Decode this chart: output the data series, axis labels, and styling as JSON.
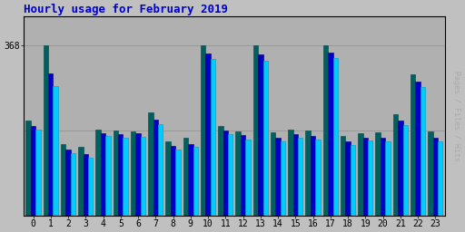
{
  "title": "Hourly usage for February 2019",
  "title_color": "#0000cc",
  "title_fontsize": 9,
  "hours": [
    0,
    1,
    2,
    3,
    4,
    5,
    6,
    7,
    8,
    9,
    10,
    11,
    12,
    13,
    14,
    15,
    16,
    17,
    18,
    19,
    20,
    21,
    22,
    23
  ],
  "max_val": 368,
  "ytick_val": 368,
  "pages": [
    205,
    368,
    155,
    148,
    185,
    183,
    182,
    222,
    160,
    168,
    368,
    193,
    181,
    368,
    179,
    185,
    183,
    368,
    172,
    178,
    180,
    218,
    305,
    181
  ],
  "files": [
    193,
    308,
    143,
    133,
    178,
    175,
    177,
    208,
    150,
    155,
    350,
    183,
    173,
    348,
    168,
    175,
    172,
    352,
    160,
    168,
    168,
    205,
    290,
    168
  ],
  "hits": [
    185,
    280,
    135,
    125,
    172,
    168,
    170,
    198,
    143,
    148,
    338,
    175,
    165,
    335,
    160,
    168,
    164,
    340,
    152,
    162,
    160,
    195,
    278,
    160
  ],
  "pages_color": "#006060",
  "files_color": "#0000cc",
  "hits_color": "#00ccff",
  "bg_color": "#c0c0c0",
  "plot_bg_color": "#b0b0b0",
  "bar_width": 0.28,
  "ylim_max": 430
}
